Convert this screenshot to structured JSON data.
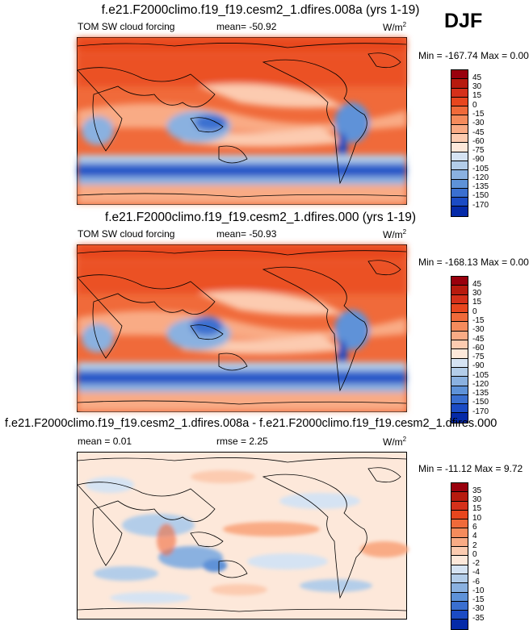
{
  "season": "DJF",
  "panels": [
    {
      "title": "f.e21.F2000climo.f19_f19.cesm2_1.dfires.008a (yrs 1-19)",
      "variable": "TOM SW cloud forcing",
      "stat_label": "mean=",
      "stat_value": "-50.92",
      "units_base": "W/m",
      "units_exp": "2",
      "min_label": "Min =",
      "min_value": "-167.74",
      "max_label": "Max =",
      "max_value": "0.00",
      "colorbar": {
        "labels": [
          "45",
          "30",
          "15",
          "0",
          "-15",
          "-30",
          "-45",
          "-60",
          "-75",
          "-90",
          "-105",
          "-120",
          "-135",
          "-150",
          "-170"
        ],
        "colors": [
          "#99000d",
          "#b71a0e",
          "#d5301a",
          "#e8461e",
          "#f06a3a",
          "#f58b5c",
          "#f9ab85",
          "#fccbb0",
          "#fde8da",
          "#d5e3f3",
          "#b3cde9",
          "#8ab1e0",
          "#5e92d8",
          "#3a6fd0",
          "#1b4bc4",
          "#052aa8"
        ]
      }
    },
    {
      "title": "f.e21.F2000climo.f19_f19.cesm2_1.dfires.000 (yrs 1-19)",
      "variable": "TOM SW cloud forcing",
      "stat_label": "mean=",
      "stat_value": "-50.93",
      "units_base": "W/m",
      "units_exp": "2",
      "min_label": "Min =",
      "min_value": "-168.13",
      "max_label": "Max =",
      "max_value": "0.00",
      "colorbar": {
        "labels": [
          "45",
          "30",
          "15",
          "0",
          "-15",
          "-30",
          "-45",
          "-60",
          "-75",
          "-90",
          "-105",
          "-120",
          "-135",
          "-150",
          "-170"
        ],
        "colors": [
          "#99000d",
          "#b71a0e",
          "#d5301a",
          "#e8461e",
          "#f06a3a",
          "#f58b5c",
          "#f9ab85",
          "#fccbb0",
          "#fde8da",
          "#d5e3f3",
          "#b3cde9",
          "#8ab1e0",
          "#5e92d8",
          "#3a6fd0",
          "#1b4bc4",
          "#052aa8"
        ]
      }
    },
    {
      "title": "f.e21.F2000climo.f19_f19.cesm2_1.dfires.008a - f.e21.F2000climo.f19_f19.cesm2_1.dfires.000",
      "mean_label": "mean =",
      "mean_value": "0.01",
      "rmse_label": "rmse =",
      "rmse_value": "2.25",
      "units_base": "W/m",
      "units_exp": "2",
      "min_label": "Min =",
      "min_value": "-11.12",
      "max_label": "Max =",
      "max_value": "9.72",
      "colorbar": {
        "labels": [
          "35",
          "30",
          "15",
          "10",
          "6",
          "4",
          "2",
          "0",
          "-2",
          "-4",
          "-6",
          "-10",
          "-15",
          "-30",
          "-35"
        ],
        "colors": [
          "#99000d",
          "#b71a0e",
          "#d5301a",
          "#e8461e",
          "#f06a3a",
          "#f58b5c",
          "#f9ab85",
          "#fccbb0",
          "#fde8da",
          "#d5e3f3",
          "#b3cde9",
          "#8ab1e0",
          "#5e92d8",
          "#3a6fd0",
          "#1b4bc4",
          "#052aa8"
        ]
      }
    }
  ]
}
